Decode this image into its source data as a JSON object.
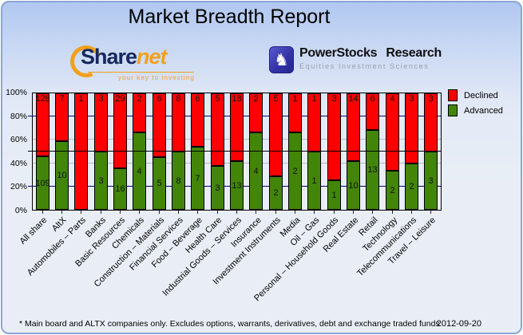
{
  "title": "Market Breadth Report",
  "logos": {
    "sharenet": {
      "part1": "Share",
      "part2": "net",
      "tagline": "your key to investing"
    },
    "powerstocks": {
      "knight_glyph": "♞",
      "title": "PowerStocks Research",
      "subtitle": "Equities Investment Sciences"
    }
  },
  "chart_data": {
    "type": "bar",
    "stacked": true,
    "unit": "percent of total companies (stacked to 100%)",
    "categories": [
      "All share",
      "AltX",
      "Automobiles – Parts",
      "Banks",
      "Basic Resources",
      "Chemicals",
      "Construction – Materials",
      "Financial Services",
      "Food – Beverage",
      "Health Care",
      "Industrial Goods – Services",
      "Insurance",
      "Investment Instruments",
      "Media",
      "Oil – Gas",
      "Personal – Household Goods",
      "Real Estate",
      "Retail",
      "Technology",
      "Telecommunications",
      "Travel – Leisure"
    ],
    "series": [
      {
        "name": "Declined",
        "color": "#ff0000",
        "values": [
          128,
          7,
          1,
          3,
          29,
          2,
          6,
          8,
          6,
          5,
          18,
          2,
          5,
          1,
          1,
          3,
          14,
          6,
          4,
          3,
          3
        ]
      },
      {
        "name": "Advanced",
        "color": "#428508",
        "values": [
          109,
          10,
          0,
          3,
          16,
          4,
          5,
          8,
          7,
          3,
          13,
          4,
          2,
          2,
          1,
          1,
          10,
          13,
          2,
          2,
          3
        ]
      }
    ],
    "y_ticks": [
      "100%",
      "80%",
      "60%",
      "40%",
      "20%",
      "0%"
    ],
    "ylim": [
      0,
      100
    ],
    "gridlines": [
      {
        "p": 80,
        "color": "#000080",
        "tick": true
      },
      {
        "p": 60,
        "color": "#b4bac6",
        "tick": false
      },
      {
        "p": 40,
        "color": "#b4bac6",
        "tick": false
      },
      {
        "p": 20,
        "color": "#000080",
        "tick": true
      }
    ],
    "reference_line": {
      "p": 50,
      "color": "#000000"
    },
    "legend_position": "top-right"
  },
  "footer": {
    "note": "* Main board and ALTX companies only. Excludes options, warrants, derivatives, debt and exchange traded funds",
    "date": "2012-09-20"
  }
}
